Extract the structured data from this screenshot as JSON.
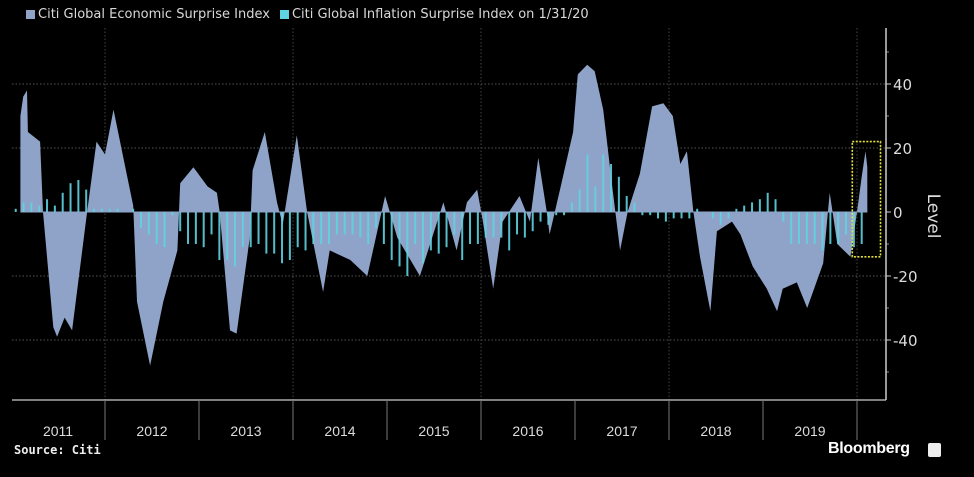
{
  "chart_data": {
    "type": "area",
    "title": "",
    "xlabel": "",
    "ylabel": "Level",
    "ylim": [
      -59,
      57
    ],
    "xlim": [
      2011.0,
      2020.2
    ],
    "yticks": [
      40,
      20,
      0,
      -20,
      -40
    ],
    "ytick_labels": [
      "40",
      "20",
      "0",
      "-20",
      "-40"
    ],
    "xtick_labels": [
      "2011",
      "2012",
      "2013",
      "2014",
      "2015",
      "2016",
      "2017",
      "2018",
      "2019"
    ],
    "grid": true,
    "legend_position": "top-left",
    "series": [
      {
        "name": "Citi Global Economic Surprise Index",
        "type": "area",
        "color": "#8ea3c7",
        "points": [
          [
            2011.1,
            30
          ],
          [
            2011.13,
            36
          ],
          [
            2011.17,
            38
          ],
          [
            2011.18,
            25
          ],
          [
            2011.31,
            22
          ],
          [
            2011.34,
            0
          ],
          [
            2011.45,
            -36
          ],
          [
            2011.49,
            -39
          ],
          [
            2011.57,
            -33
          ],
          [
            2011.65,
            -37
          ],
          [
            2011.81,
            0
          ],
          [
            2011.91,
            22
          ],
          [
            2012.0,
            18
          ],
          [
            2012.09,
            32
          ],
          [
            2012.23,
            12
          ],
          [
            2012.3,
            2
          ],
          [
            2012.34,
            -28
          ],
          [
            2012.48,
            -48
          ],
          [
            2012.62,
            -28
          ],
          [
            2012.77,
            -12
          ],
          [
            2012.8,
            9
          ],
          [
            2012.94,
            14
          ],
          [
            2013.09,
            8
          ],
          [
            2013.19,
            6
          ],
          [
            2013.22,
            0
          ],
          [
            2013.33,
            -37
          ],
          [
            2013.4,
            -38
          ],
          [
            2013.54,
            -8
          ],
          [
            2013.57,
            13
          ],
          [
            2013.7,
            25
          ],
          [
            2013.83,
            3
          ],
          [
            2013.89,
            -4
          ],
          [
            2014.04,
            24
          ],
          [
            2014.15,
            0
          ],
          [
            2014.32,
            -25
          ],
          [
            2014.39,
            -12
          ],
          [
            2014.61,
            -15
          ],
          [
            2014.79,
            -20
          ],
          [
            2014.98,
            5
          ],
          [
            2015.11,
            -8
          ],
          [
            2015.35,
            -20
          ],
          [
            2015.6,
            3
          ],
          [
            2015.74,
            -12
          ],
          [
            2015.85,
            3
          ],
          [
            2015.96,
            7
          ],
          [
            2016.02,
            -3
          ],
          [
            2016.13,
            -24
          ],
          [
            2016.23,
            -3
          ],
          [
            2016.41,
            5
          ],
          [
            2016.52,
            -3
          ],
          [
            2016.61,
            17
          ],
          [
            2016.7,
            0
          ],
          [
            2016.73,
            -7
          ],
          [
            2016.84,
            7
          ],
          [
            2016.98,
            25
          ],
          [
            2017.03,
            43
          ],
          [
            2017.13,
            46
          ],
          [
            2017.21,
            44
          ],
          [
            2017.3,
            32
          ],
          [
            2017.4,
            7
          ],
          [
            2017.48,
            -12
          ],
          [
            2017.56,
            0
          ],
          [
            2017.69,
            12
          ],
          [
            2017.82,
            33
          ],
          [
            2017.94,
            34
          ],
          [
            2018.04,
            30
          ],
          [
            2018.12,
            15
          ],
          [
            2018.19,
            19
          ],
          [
            2018.26,
            0
          ],
          [
            2018.33,
            -14
          ],
          [
            2018.44,
            -31
          ],
          [
            2018.51,
            -6
          ],
          [
            2018.67,
            -3
          ],
          [
            2018.76,
            -7
          ],
          [
            2018.89,
            -17
          ],
          [
            2019.04,
            -24
          ],
          [
            2019.15,
            -31
          ],
          [
            2019.21,
            -24
          ],
          [
            2019.36,
            -22
          ],
          [
            2019.47,
            -30
          ],
          [
            2019.64,
            -16
          ],
          [
            2019.71,
            6
          ],
          [
            2019.79,
            -10
          ],
          [
            2019.93,
            -14
          ],
          [
            2020.0,
            0
          ],
          [
            2020.05,
            11
          ],
          [
            2020.09,
            19
          ],
          [
            2020.11,
            14
          ]
        ]
      },
      {
        "name": "Citi Global Inflation Surprise Index on 1/31/20",
        "type": "bar",
        "color": "#5fd3e0",
        "start": "2011-01",
        "frequency": "monthly",
        "values": [
          1,
          3,
          3,
          2,
          4,
          2,
          6,
          9,
          10,
          7,
          1,
          1,
          1,
          1,
          0,
          1,
          -5,
          -7,
          -10,
          -11,
          -1,
          -6,
          -10,
          -10,
          -11,
          -7,
          -15,
          -15,
          -17,
          -11,
          -11,
          -10,
          -13,
          -13,
          -16,
          -15,
          -11,
          -12,
          -10,
          -10,
          -10,
          -7,
          -7,
          -7,
          -8,
          -10,
          -5,
          -10,
          -15,
          -17,
          -20,
          -10,
          -16,
          -12,
          -13,
          -11,
          -7,
          -15,
          -10,
          -10,
          -8,
          -8,
          -8,
          -12,
          -7,
          -8,
          -6,
          -3,
          -4,
          -1,
          -1,
          3,
          7,
          18,
          8,
          18,
          15,
          11,
          5,
          3,
          -1,
          -1,
          -2,
          -3,
          -2,
          -2,
          -2,
          1,
          0,
          -2,
          -4,
          -2,
          1,
          2,
          3,
          4,
          6,
          4,
          -3,
          -10,
          -10,
          -10,
          -10,
          -12,
          -10,
          -10,
          -7,
          -11,
          -10
        ]
      }
    ],
    "annotations": [
      {
        "type": "dotted-box",
        "color": "#e6e23a",
        "x_range": [
          2019.95,
          2020.25
        ],
        "y_range": [
          -14,
          22
        ]
      }
    ],
    "source": "Source: Citi",
    "brand": "Bloomberg"
  }
}
